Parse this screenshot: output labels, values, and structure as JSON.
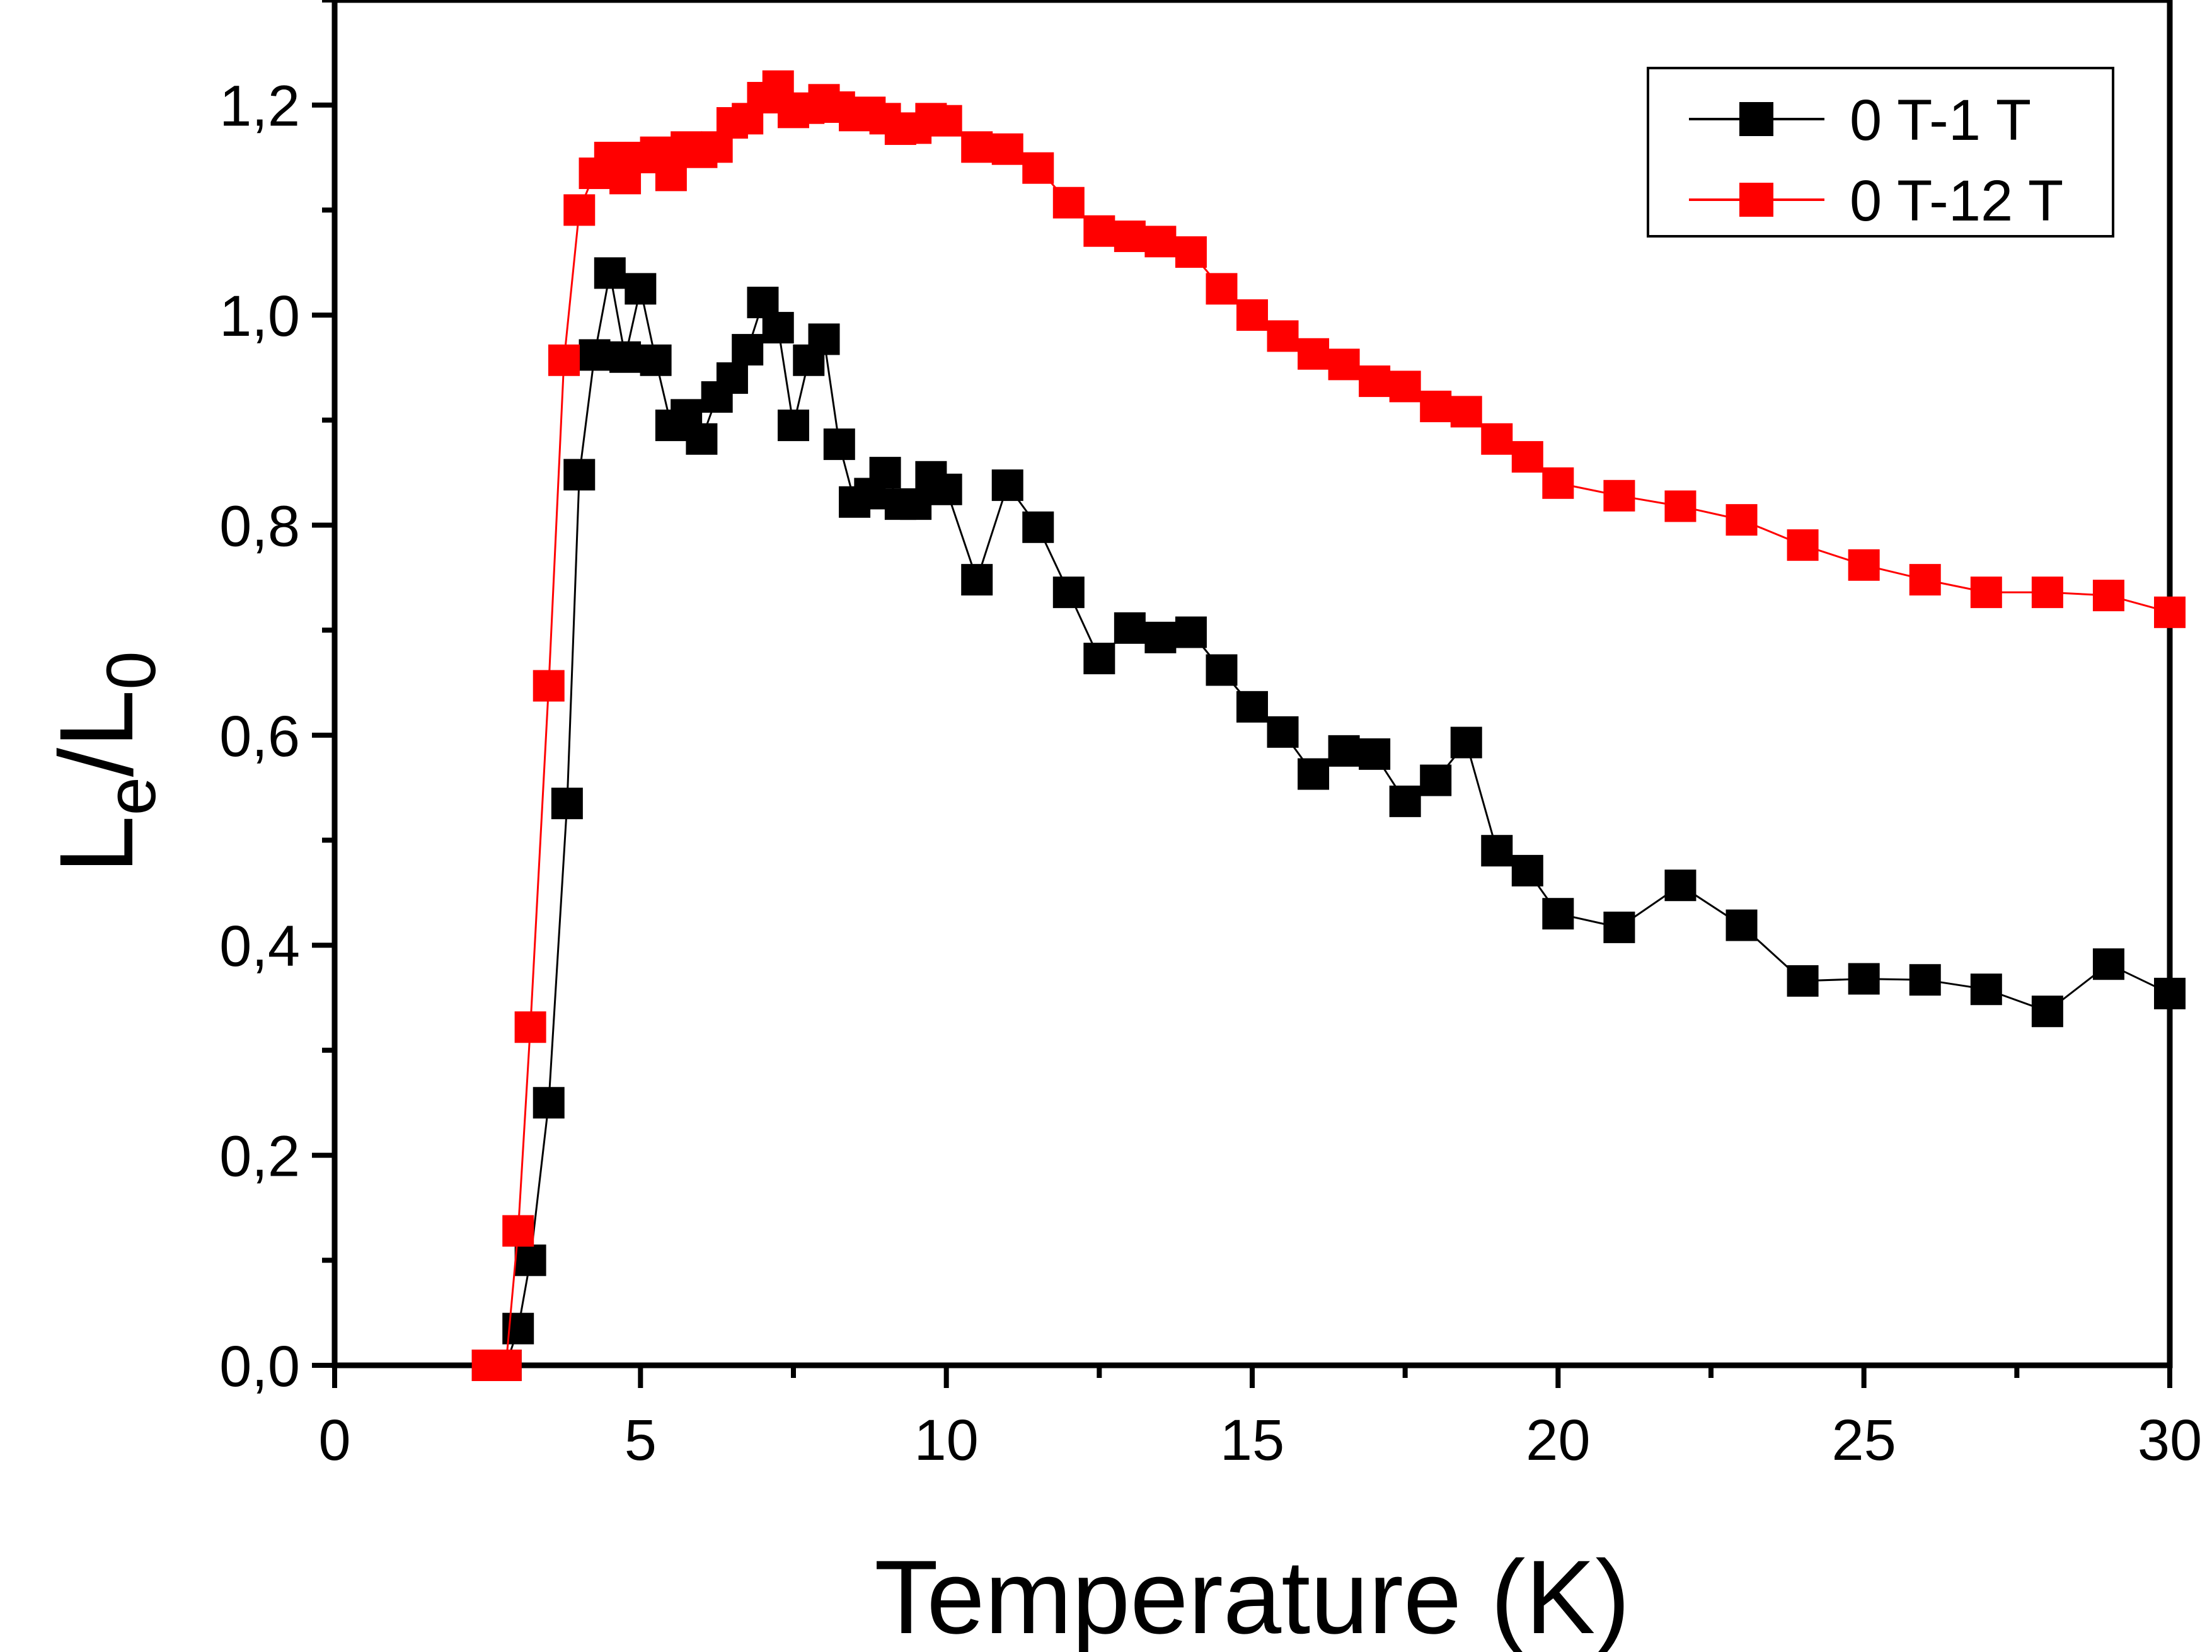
{
  "chart_data": {
    "type": "line",
    "title": "",
    "xlabel": "Temperature (K)",
    "ylabel": {
      "main": "L",
      "sub1": "e",
      "slash": "/L",
      "sub2": "0"
    },
    "xlim": [
      0,
      30
    ],
    "ylim": [
      0,
      1.3
    ],
    "xticks": [
      0,
      5,
      10,
      15,
      20,
      25,
      30
    ],
    "xtick_labels": [
      "0",
      "5",
      "10",
      "15",
      "20",
      "25",
      "30"
    ],
    "yticks": [
      0,
      0.2,
      0.4,
      0.6,
      0.8,
      1.0,
      1.2
    ],
    "ytick_labels": [
      "0,0",
      "0,2",
      "0,4",
      "0,6",
      "0,8",
      "1,0",
      "1,2"
    ],
    "grid": false,
    "legend_position": "top-right",
    "series": [
      {
        "name": "0 T-1 T",
        "color": "#000000",
        "marker": "square",
        "x": [
          2.5,
          2.8,
          3.0,
          3.2,
          3.5,
          3.8,
          4.0,
          4.25,
          4.5,
          4.75,
          5.0,
          5.25,
          5.5,
          5.75,
          6.0,
          6.25,
          6.5,
          6.75,
          7.0,
          7.25,
          7.5,
          7.75,
          8.0,
          8.25,
          8.5,
          8.75,
          9.0,
          9.25,
          9.5,
          9.75,
          10.0,
          10.5,
          11.0,
          11.5,
          12.0,
          12.5,
          13.0,
          13.5,
          14.0,
          14.5,
          15.0,
          15.5,
          16.0,
          16.5,
          17.0,
          17.5,
          18.0,
          18.5,
          19.0,
          19.5,
          20.0,
          21.0,
          22.0,
          23.0,
          24.0,
          25.0,
          26.0,
          27.0,
          28.0,
          29.0,
          30.0
        ],
        "values": [
          0.0,
          0.0,
          0.035,
          0.1,
          0.25,
          0.535,
          0.848,
          0.962,
          1.04,
          0.96,
          1.025,
          0.957,
          0.895,
          0.905,
          0.882,
          0.922,
          0.94,
          0.967,
          1.012,
          0.988,
          0.895,
          0.957,
          0.977,
          0.877,
          0.822,
          0.83,
          0.85,
          0.82,
          0.82,
          0.846,
          0.834,
          0.748,
          0.838,
          0.798,
          0.736,
          0.673,
          0.702,
          0.693,
          0.698,
          0.662,
          0.627,
          0.603,
          0.563,
          0.585,
          0.582,
          0.537,
          0.557,
          0.593,
          0.49,
          0.471,
          0.43,
          0.417,
          0.457,
          0.419,
          0.366,
          0.368,
          0.367,
          0.358,
          0.337,
          0.382,
          0.354
        ]
      },
      {
        "name": "0 T-12 T",
        "color": "#ff0000",
        "marker": "square",
        "x": [
          2.5,
          2.8,
          3.0,
          3.2,
          3.5,
          3.75,
          4.0,
          4.25,
          4.5,
          4.75,
          5.0,
          5.25,
          5.5,
          5.75,
          6.0,
          6.25,
          6.5,
          6.75,
          7.0,
          7.25,
          7.5,
          7.75,
          8.0,
          8.25,
          8.5,
          8.75,
          9.0,
          9.25,
          9.5,
          9.75,
          10.0,
          10.5,
          11.0,
          11.5,
          12.0,
          12.5,
          13.0,
          13.5,
          14.0,
          14.5,
          15.0,
          15.5,
          16.0,
          16.5,
          17.0,
          17.5,
          18.0,
          18.5,
          19.0,
          19.5,
          20.0,
          21.0,
          22.0,
          23.0,
          24.0,
          25.0,
          26.0,
          27.0,
          28.0,
          29.0,
          30.0
        ],
        "values": [
          0.0,
          0.0,
          0.128,
          0.322,
          0.647,
          0.957,
          1.1,
          1.135,
          1.15,
          1.13,
          1.15,
          1.155,
          1.133,
          1.16,
          1.155,
          1.16,
          1.183,
          1.187,
          1.207,
          1.218,
          1.193,
          1.197,
          1.205,
          1.198,
          1.19,
          1.193,
          1.187,
          1.177,
          1.178,
          1.187,
          1.185,
          1.16,
          1.158,
          1.14,
          1.107,
          1.08,
          1.075,
          1.07,
          1.06,
          1.025,
          1.0,
          0.98,
          0.963,
          0.953,
          0.937,
          0.932,
          0.913,
          0.908,
          0.882,
          0.865,
          0.84,
          0.828,
          0.818,
          0.805,
          0.781,
          0.762,
          0.748,
          0.736,
          0.736,
          0.733,
          0.717
        ]
      }
    ]
  }
}
